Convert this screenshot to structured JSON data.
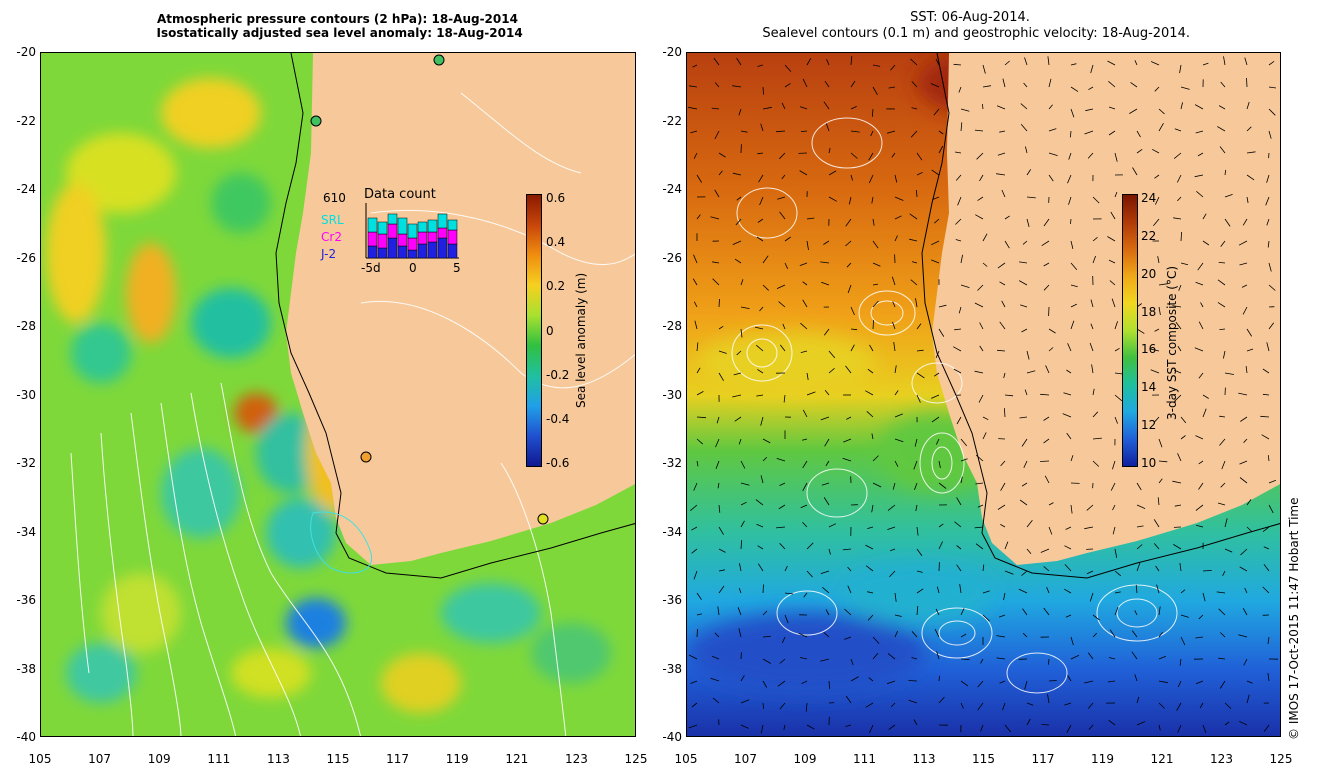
{
  "left": {
    "title": "Atmospheric pressure contours (2 hPa): 18-Aug-2014\n Isostatically adjusted sea level anomaly: 18-Aug-2014",
    "colorbar": {
      "label": "Sea level anomaly (m)",
      "ticks": [
        "0.6",
        "0.4",
        "0.2",
        "0",
        "-0.2",
        "-0.4",
        "-0.6"
      ],
      "colors": [
        "#8b1a00",
        "#c8460a",
        "#f08e10",
        "#f5d020",
        "#a8e030",
        "#30c040",
        "#20c0a0",
        "#20a0e8",
        "#2050d0",
        "#101890"
      ]
    },
    "data_count": {
      "title": "Data count",
      "total": "610",
      "sources": [
        "SRL",
        "Cr2",
        "J-2"
      ],
      "source_colors": [
        "#00e0e0",
        "#ff00ff",
        "#2020e0"
      ],
      "axis_ticks": [
        "-5d",
        "0",
        "5"
      ]
    }
  },
  "right": {
    "title": "SST: 06-Aug-2014.\n   Sealevel contours (0.1 m) and geostrophic velocity: 18-Aug-2014.",
    "colorbar": {
      "label": "3-day SST composite (°C)",
      "ticks": [
        "24",
        "22",
        "20",
        "18",
        "16",
        "14",
        "12",
        "10"
      ],
      "colors": [
        "#7a1400",
        "#b03a08",
        "#d86a10",
        "#f0a818",
        "#f0d820",
        "#b0e030",
        "#40c040",
        "#20c0a0",
        "#20a8e0",
        "#2060d8",
        "#1020a0"
      ]
    }
  },
  "axes": {
    "y_ticks": [
      "-20",
      "-22",
      "-24",
      "-26",
      "-28",
      "-30",
      "-32",
      "-34",
      "-36",
      "-38",
      "-40"
    ],
    "x_ticks": [
      "105",
      "107",
      "109",
      "111",
      "113",
      "115",
      "117",
      "119",
      "121",
      "123",
      "125"
    ]
  },
  "credit": "© IMOS 17-Oct-2015 11:47 Hobart Time",
  "land_color": "#f7c99a"
}
